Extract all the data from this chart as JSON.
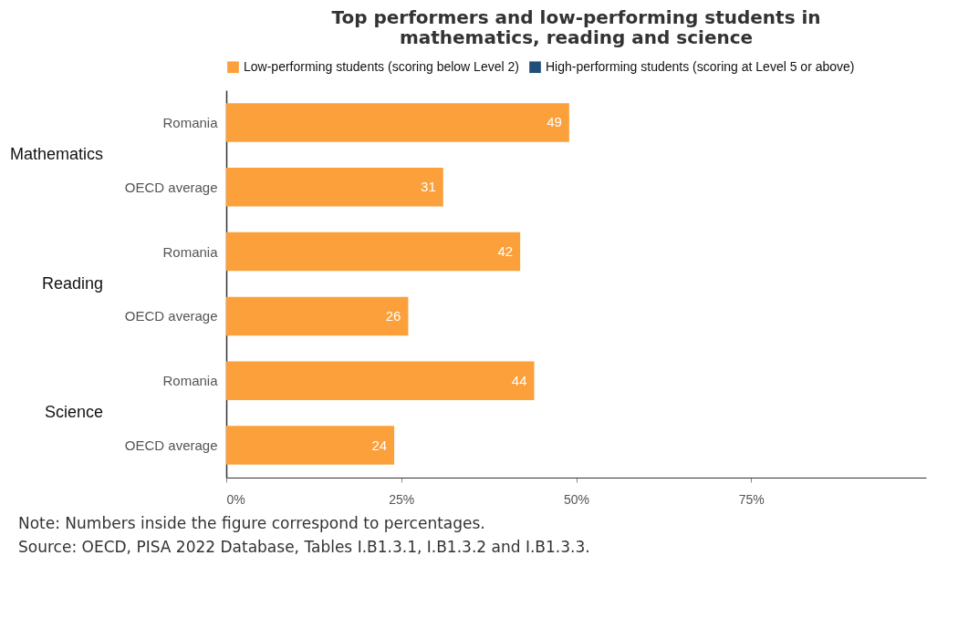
{
  "chart_data": {
    "type": "bar",
    "orientation": "horizontal",
    "title": "Top performers and low-performing students in mathematics, reading and science",
    "categories": [
      "Romania",
      "OECD average",
      "Romania",
      "OECD average",
      "Romania",
      "OECD average"
    ],
    "series": [
      {
        "name": "Low-performing students (scoring below Level 2)",
        "color": "#fba03a",
        "values": [
          49,
          31,
          42,
          26,
          44,
          24
        ]
      },
      {
        "name": "High-performing students (scoring at Level 5 or above)",
        "color": "#1f4e79",
        "values": [
          null,
          null,
          null,
          null,
          null,
          null
        ]
      }
    ],
    "xlim": [
      0,
      100
    ],
    "xticks": [
      {
        "value": 0,
        "label": "0%"
      },
      {
        "value": 25,
        "label": "25%"
      },
      {
        "value": 50,
        "label": "50%"
      },
      {
        "value": 75,
        "label": "75%"
      }
    ],
    "data_labels": true,
    "grid": false,
    "legend": "top",
    "annotations": [
      "Mathematics",
      "Reading",
      "Science",
      "Note: Numbers inside the figure correspond to percentages.",
      "Source: OECD, PISA 2022 Database, Tables I.B1.3.1, I.B1.3.2 and I.B1.3.3."
    ]
  }
}
